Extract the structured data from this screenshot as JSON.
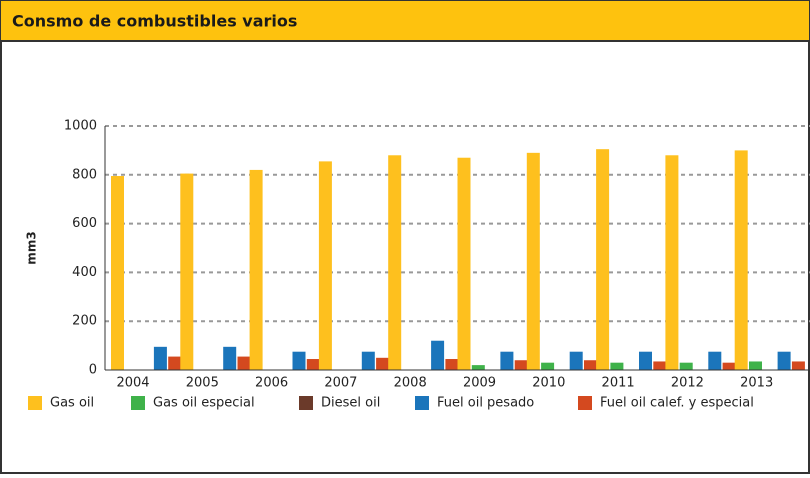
{
  "chart_data": {
    "type": "bar",
    "title": "Consmo de combustibles varios",
    "y_label": "mm3",
    "categories": [
      "2004",
      "2005",
      "2006",
      "2007",
      "2008",
      "2009",
      "2010",
      "2011",
      "2012",
      "2013"
    ],
    "series": [
      {
        "name": "Gas oil",
        "color": "#fec01e",
        "values": [
          795,
          805,
          820,
          855,
          880,
          870,
          890,
          905,
          880,
          900
        ]
      },
      {
        "name": "Gas oil especial",
        "color": "#3fb24a",
        "values": [
          0,
          0,
          0,
          0,
          0,
          20,
          30,
          30,
          30,
          35
        ]
      },
      {
        "name": "Diesel oil",
        "color": "#6b3a2a",
        "values": [
          0,
          0,
          0,
          0,
          0,
          0,
          0,
          0,
          0,
          0
        ]
      },
      {
        "name": "Fuel oil pesado",
        "color": "#1b75bb",
        "values": [
          95,
          95,
          75,
          75,
          120,
          75,
          75,
          75,
          75,
          75
        ]
      },
      {
        "name": "Fuel oil calef. y especial",
        "color": "#d4491f",
        "values": [
          55,
          55,
          45,
          50,
          45,
          40,
          40,
          35,
          30,
          35
        ]
      }
    ],
    "ylim": [
      0,
      1000
    ],
    "yticks": [
      0,
      200,
      400,
      600,
      800,
      1000
    ],
    "grid": true,
    "legend": "bottom"
  }
}
